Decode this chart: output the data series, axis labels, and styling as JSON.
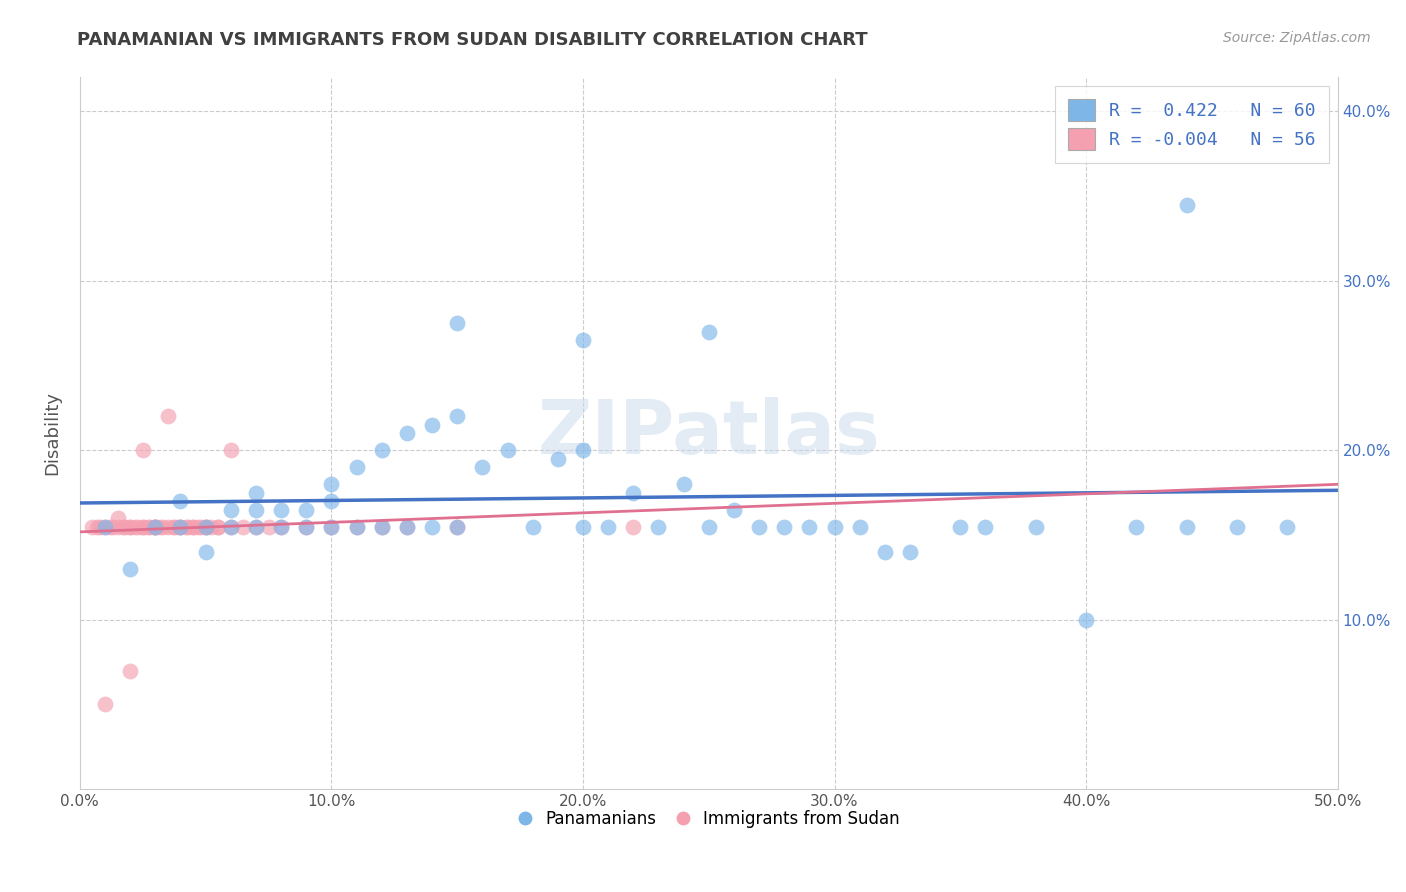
{
  "title": "PANAMANIAN VS IMMIGRANTS FROM SUDAN DISABILITY CORRELATION CHART",
  "source": "Source: ZipAtlas.com",
  "ylabel": "Disability",
  "xlabel": "",
  "watermark": "ZIPatlas",
  "xlim": [
    0.0,
    0.5
  ],
  "ylim": [
    0.0,
    0.42
  ],
  "xtick_vals": [
    0.0,
    0.1,
    0.2,
    0.3,
    0.4,
    0.5
  ],
  "ytick_vals": [
    0.1,
    0.2,
    0.3,
    0.4
  ],
  "legend_blue_r": "0.422",
  "legend_blue_n": "60",
  "legend_pink_r": "-0.004",
  "legend_pink_n": "56",
  "blue_color": "#7EB6E8",
  "pink_color": "#F4A0B0",
  "blue_line_color": "#4472C4",
  "pink_line_color": "#E07090",
  "grid_color": "#CCCCCC",
  "title_color": "#404040",
  "blue_scatter_x": [
    0.01,
    0.02,
    0.03,
    0.04,
    0.04,
    0.05,
    0.05,
    0.06,
    0.06,
    0.07,
    0.07,
    0.07,
    0.08,
    0.08,
    0.09,
    0.09,
    0.1,
    0.1,
    0.1,
    0.11,
    0.11,
    0.12,
    0.12,
    0.13,
    0.13,
    0.14,
    0.14,
    0.15,
    0.15,
    0.16,
    0.17,
    0.18,
    0.19,
    0.2,
    0.2,
    0.21,
    0.22,
    0.23,
    0.24,
    0.25,
    0.26,
    0.27,
    0.28,
    0.29,
    0.3,
    0.31,
    0.32,
    0.33,
    0.35,
    0.36,
    0.38,
    0.4,
    0.42,
    0.44,
    0.46,
    0.48,
    0.15,
    0.2,
    0.25,
    0.44
  ],
  "blue_scatter_y": [
    0.155,
    0.13,
    0.155,
    0.155,
    0.17,
    0.14,
    0.155,
    0.155,
    0.165,
    0.155,
    0.165,
    0.175,
    0.155,
    0.165,
    0.155,
    0.165,
    0.155,
    0.17,
    0.18,
    0.155,
    0.19,
    0.155,
    0.2,
    0.155,
    0.21,
    0.155,
    0.215,
    0.155,
    0.22,
    0.19,
    0.2,
    0.155,
    0.195,
    0.155,
    0.2,
    0.155,
    0.175,
    0.155,
    0.18,
    0.155,
    0.165,
    0.155,
    0.155,
    0.155,
    0.155,
    0.155,
    0.14,
    0.14,
    0.155,
    0.155,
    0.155,
    0.1,
    0.155,
    0.155,
    0.155,
    0.155,
    0.275,
    0.265,
    0.27,
    0.345
  ],
  "pink_scatter_x": [
    0.005,
    0.007,
    0.008,
    0.01,
    0.012,
    0.013,
    0.015,
    0.015,
    0.017,
    0.018,
    0.02,
    0.02,
    0.022,
    0.023,
    0.025,
    0.025,
    0.027,
    0.028,
    0.03,
    0.03,
    0.03,
    0.032,
    0.033,
    0.035,
    0.035,
    0.037,
    0.038,
    0.04,
    0.04,
    0.042,
    0.043,
    0.045,
    0.045,
    0.047,
    0.048,
    0.05,
    0.05,
    0.052,
    0.055,
    0.055,
    0.06,
    0.06,
    0.065,
    0.07,
    0.075,
    0.08,
    0.09,
    0.1,
    0.11,
    0.12,
    0.13,
    0.15,
    0.01,
    0.02,
    0.025,
    0.22
  ],
  "pink_scatter_y": [
    0.155,
    0.155,
    0.155,
    0.155,
    0.155,
    0.155,
    0.155,
    0.16,
    0.155,
    0.155,
    0.155,
    0.155,
    0.155,
    0.155,
    0.155,
    0.2,
    0.155,
    0.155,
    0.155,
    0.155,
    0.155,
    0.155,
    0.155,
    0.155,
    0.22,
    0.155,
    0.155,
    0.155,
    0.155,
    0.155,
    0.155,
    0.155,
    0.155,
    0.155,
    0.155,
    0.155,
    0.155,
    0.155,
    0.155,
    0.155,
    0.155,
    0.2,
    0.155,
    0.155,
    0.155,
    0.155,
    0.155,
    0.155,
    0.155,
    0.155,
    0.155,
    0.155,
    0.05,
    0.07,
    0.155,
    0.155
  ]
}
